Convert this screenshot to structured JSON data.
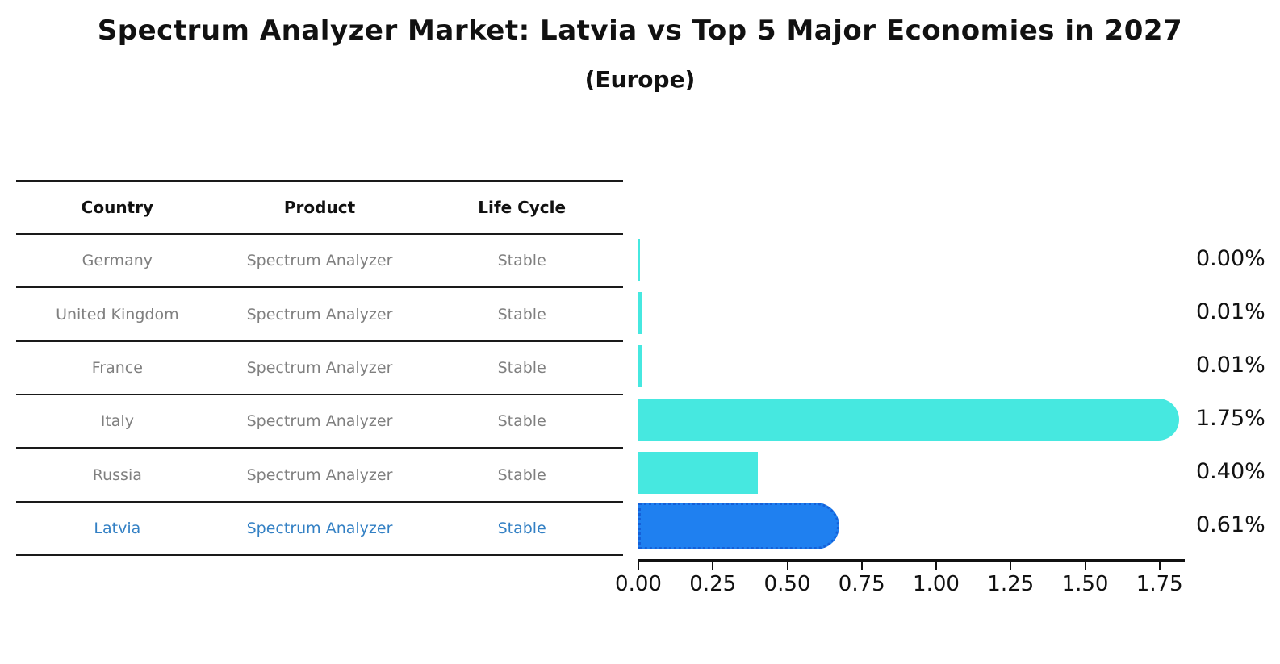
{
  "page": {
    "title": "Spectrum Analyzer Market: Latvia vs Top 5 Major Economies in 2027",
    "subtitle": "(Europe)"
  },
  "table": {
    "headers": [
      "Country",
      "Product",
      "Life Cycle"
    ],
    "rows": [
      {
        "country": "Germany",
        "product": "Spectrum Analyzer",
        "life_cycle": "Stable",
        "highlighted": false
      },
      {
        "country": "United Kingdom",
        "product": "Spectrum Analyzer",
        "life_cycle": "Stable",
        "highlighted": false
      },
      {
        "country": "France",
        "product": "Spectrum Analyzer",
        "life_cycle": "Stable",
        "highlighted": false
      },
      {
        "country": "Italy",
        "product": "Spectrum Analyzer",
        "life_cycle": "Stable",
        "highlighted": false
      },
      {
        "country": "Russia",
        "product": "Spectrum Analyzer",
        "life_cycle": "Stable",
        "highlighted": false
      },
      {
        "country": "Latvia",
        "product": "Spectrum Analyzer",
        "life_cycle": "Stable",
        "highlighted": true
      }
    ]
  },
  "chart_data": {
    "type": "bar",
    "orientation": "horizontal",
    "title": "Spectrum Analyzer Market: Latvia vs Top 5 Major Economies in 2027",
    "subtitle": "(Europe)",
    "categories": [
      "Germany",
      "United Kingdom",
      "France",
      "Italy",
      "Russia",
      "Latvia"
    ],
    "values": [
      0.0,
      0.01,
      0.01,
      1.75,
      0.4,
      0.61
    ],
    "value_labels": [
      "0.00%",
      "0.01%",
      "0.01%",
      "1.75%",
      "0.40%",
      "0.61%"
    ],
    "xlabel": "",
    "ylabel": "",
    "xlim": [
      0,
      1.83
    ],
    "xticks": [
      0.0,
      0.25,
      0.5,
      0.75,
      1.0,
      1.25,
      1.5,
      1.75
    ],
    "xtick_labels": [
      "0.00",
      "0.25",
      "0.50",
      "0.75",
      "1.00",
      "1.25",
      "1.50",
      "1.75"
    ],
    "grid": false,
    "legend": "none",
    "highlight_index": 5,
    "rounded_bars": [
      false,
      false,
      false,
      true,
      false,
      true
    ]
  },
  "colors": {
    "bar_default": "#46e8e0",
    "bar_highlight": "#1f80f0",
    "bar_highlight_border": "#1560d8",
    "table_text": "#7f7f7f",
    "table_highlight_text": "#3380c4",
    "header_text": "#111111",
    "axis": "#111111",
    "value_label_text": "#111111",
    "background": "#ffffff"
  }
}
